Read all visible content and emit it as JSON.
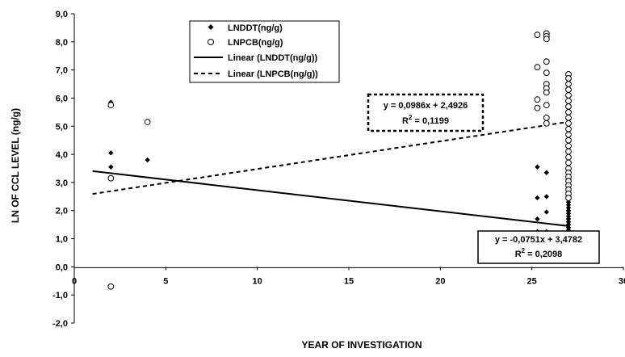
{
  "chart_data": {
    "type": "scatter",
    "title": "",
    "xlabel": "YEAR OF INVESTIGATION",
    "ylabel": "LN OF CCL LEVEL  (ng/g)",
    "xlim": [
      0,
      30
    ],
    "ylim": [
      -2,
      9
    ],
    "x_ticks": [
      {
        "value": 0,
        "label": "0"
      },
      {
        "value": 5,
        "label": "5"
      },
      {
        "value": 10,
        "label": "10"
      },
      {
        "value": 15,
        "label": "15"
      },
      {
        "value": 20,
        "label": "20"
      },
      {
        "value": 25,
        "label": "25"
      },
      {
        "value": 30,
        "label": "30"
      }
    ],
    "y_ticks": [
      {
        "value": -2,
        "label": "-2,0"
      },
      {
        "value": -1,
        "label": "-1,0"
      },
      {
        "value": 0,
        "label": "0,0"
      },
      {
        "value": 1,
        "label": "1,0"
      },
      {
        "value": 2,
        "label": "2,0"
      },
      {
        "value": 3,
        "label": "3,0"
      },
      {
        "value": 4,
        "label": "4,0"
      },
      {
        "value": 5,
        "label": "5,0"
      },
      {
        "value": 6,
        "label": "6,0"
      },
      {
        "value": 7,
        "label": "7,0"
      },
      {
        "value": 8,
        "label": "8,0"
      },
      {
        "value": 9,
        "label": "9,0"
      }
    ],
    "grid": false,
    "legend_position": "top-center",
    "series": [
      {
        "name": "LNDDT(ng/g)",
        "marker": "filled-diamond",
        "color": "#000000",
        "points": [
          [
            2,
            5.85
          ],
          [
            2,
            4.05
          ],
          [
            2,
            3.55
          ],
          [
            4,
            3.8
          ],
          [
            25.3,
            3.55
          ],
          [
            25.3,
            2.45
          ],
          [
            25.3,
            1.7
          ],
          [
            25.3,
            1.25
          ],
          [
            25.8,
            3.35
          ],
          [
            25.8,
            2.5
          ],
          [
            25.8,
            1.95
          ],
          [
            25.8,
            1.25
          ],
          [
            25.8,
            1.1
          ],
          [
            25.8,
            0.95
          ],
          [
            25.8,
            0.8
          ],
          [
            25.8,
            0.6
          ],
          [
            25.8,
            0.4
          ],
          [
            27,
            2.45
          ],
          [
            27,
            2.3
          ],
          [
            27,
            2.2
          ],
          [
            27,
            2.1
          ],
          [
            27,
            2.0
          ],
          [
            27,
            1.9
          ],
          [
            27,
            1.8
          ],
          [
            27,
            1.7
          ],
          [
            27,
            1.6
          ],
          [
            27,
            1.5
          ],
          [
            27,
            1.4
          ],
          [
            27,
            1.3
          ],
          [
            27,
            1.2
          ],
          [
            27,
            1.1
          ],
          [
            27,
            1.0
          ],
          [
            27,
            0.9
          ],
          [
            27,
            0.8
          ],
          [
            27,
            0.7
          ],
          [
            27,
            0.6
          ],
          [
            27,
            0.5
          ]
        ]
      },
      {
        "name": "LNPCB(ng/g)",
        "marker": "open-circle",
        "color": "#000000",
        "points": [
          [
            2,
            5.75
          ],
          [
            2,
            3.15
          ],
          [
            2,
            -0.7
          ],
          [
            4,
            5.15
          ],
          [
            25.3,
            8.25
          ],
          [
            25.3,
            7.1
          ],
          [
            25.3,
            5.95
          ],
          [
            25.3,
            5.65
          ],
          [
            25.8,
            8.3
          ],
          [
            25.8,
            8.2
          ],
          [
            25.8,
            8.1
          ],
          [
            25.8,
            7.3
          ],
          [
            25.8,
            6.9
          ],
          [
            25.8,
            6.5
          ],
          [
            25.8,
            6.35
          ],
          [
            25.8,
            6.2
          ],
          [
            25.8,
            5.75
          ],
          [
            25.8,
            5.3
          ],
          [
            25.8,
            5.1
          ],
          [
            27,
            6.85
          ],
          [
            27,
            6.7
          ],
          [
            27,
            6.5
          ],
          [
            27,
            6.3
          ],
          [
            27,
            6.1
          ],
          [
            27,
            5.9
          ],
          [
            27,
            5.7
          ],
          [
            27,
            5.5
          ],
          [
            27,
            5.3
          ],
          [
            27,
            5.1
          ],
          [
            27,
            4.9
          ],
          [
            27,
            4.7
          ],
          [
            27,
            4.5
          ],
          [
            27,
            4.3
          ],
          [
            27,
            4.1
          ],
          [
            27,
            3.9
          ],
          [
            27,
            3.7
          ],
          [
            27,
            3.5
          ],
          [
            27,
            3.35
          ],
          [
            27,
            3.2
          ],
          [
            27,
            3.05
          ],
          [
            27,
            2.9
          ],
          [
            27,
            2.75
          ],
          [
            27,
            2.6
          ],
          [
            27,
            2.45
          ]
        ]
      }
    ],
    "trendlines": [
      {
        "name": "Linear (LNDDT(ng/g))",
        "style": "solid",
        "slope": -0.0751,
        "intercept": 3.4782,
        "x_range": [
          1,
          27
        ],
        "equation": "y = -0,0751x + 3,4782",
        "r2_prefix": "R",
        "r2_exp": "2",
        "r2_value": " = 0,2098"
      },
      {
        "name": "Linear (LNPCB(ng/g))",
        "style": "dashed",
        "slope": 0.0986,
        "intercept": 2.4926,
        "x_range": [
          1,
          27
        ],
        "equation": "y = 0,0986x + 2,4926",
        "r2_prefix": "R",
        "r2_exp": "2",
        "r2_value": " = 0,1199"
      }
    ]
  }
}
